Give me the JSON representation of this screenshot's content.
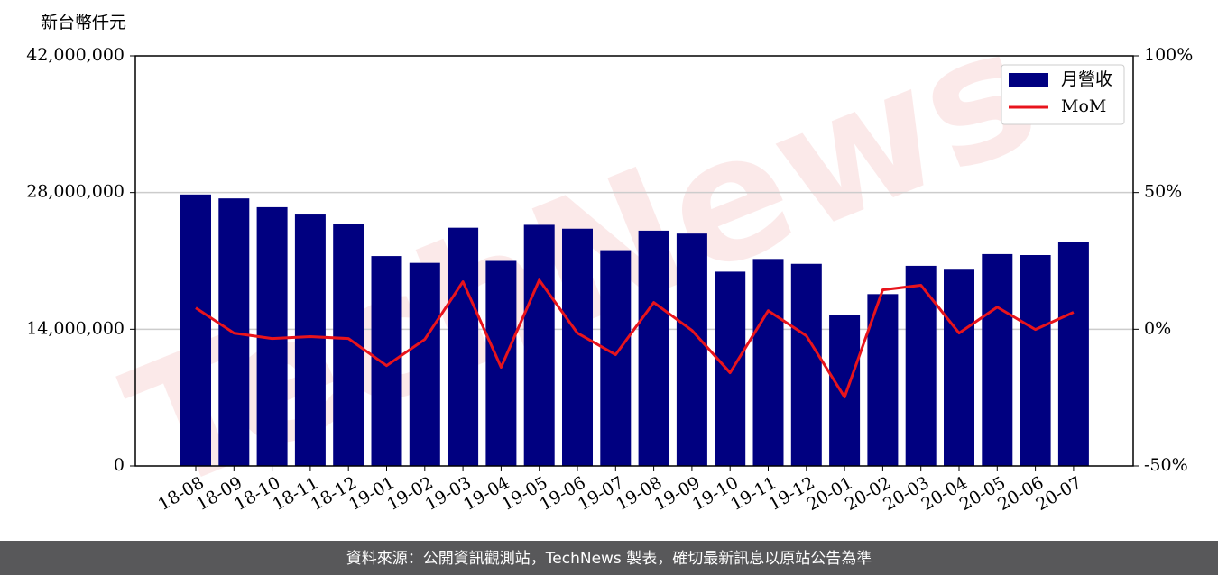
{
  "chart_data": {
    "type": "bar_line",
    "y_label": "新台幣仟元",
    "watermark": "TechNews",
    "footer": "資料來源：公開資訊觀測站，TechNews 製表，確切最新訊息以原站公告為準",
    "categories": [
      "18-08",
      "18-09",
      "18-10",
      "18-11",
      "18-12",
      "19-01",
      "19-02",
      "19-03",
      "19-04",
      "19-05",
      "19-06",
      "19-07",
      "19-08",
      "19-09",
      "19-10",
      "19-11",
      "19-12",
      "20-01",
      "20-02",
      "20-03",
      "20-04",
      "20-05",
      "20-06",
      "20-07"
    ],
    "series": [
      {
        "name": "月營收",
        "type": "bar",
        "color": "#000080",
        "values": [
          27800000,
          27400000,
          26500000,
          25750000,
          24800000,
          21500000,
          20800000,
          24400000,
          21000000,
          24700000,
          24300000,
          22100000,
          24100000,
          23800000,
          19900000,
          21200000,
          20700000,
          15500000,
          17600000,
          20500000,
          20100000,
          21700000,
          21600000,
          22900000
        ]
      },
      {
        "name": "MoM",
        "type": "line",
        "axis": "y2",
        "color": "#e8141c",
        "values": [
          7.8,
          -1.4,
          -3.4,
          -2.7,
          -3.4,
          -13.3,
          -3.7,
          17.4,
          -13.9,
          18.0,
          -1.4,
          -9.3,
          9.8,
          -0.4,
          -15.9,
          6.8,
          -2.4,
          -24.8,
          14.4,
          16.1,
          -1.4,
          8.1,
          -0.1,
          6.2
        ]
      }
    ],
    "ylim": [
      0,
      42000000
    ],
    "yticks": [
      {
        "value": 0,
        "label": "0"
      },
      {
        "value": 14000000,
        "label": "14,000,000"
      },
      {
        "value": 28000000,
        "label": "28,000,000"
      },
      {
        "value": 42000000,
        "label": "42,000,000"
      }
    ],
    "y2lim": [
      -50,
      100
    ],
    "y2ticks": [
      {
        "value": -50,
        "label": "-50%"
      },
      {
        "value": 0,
        "label": "0%"
      },
      {
        "value": 50,
        "label": "50%"
      },
      {
        "value": 100,
        "label": "100%"
      }
    ],
    "grid": true,
    "legend": "upper right"
  }
}
